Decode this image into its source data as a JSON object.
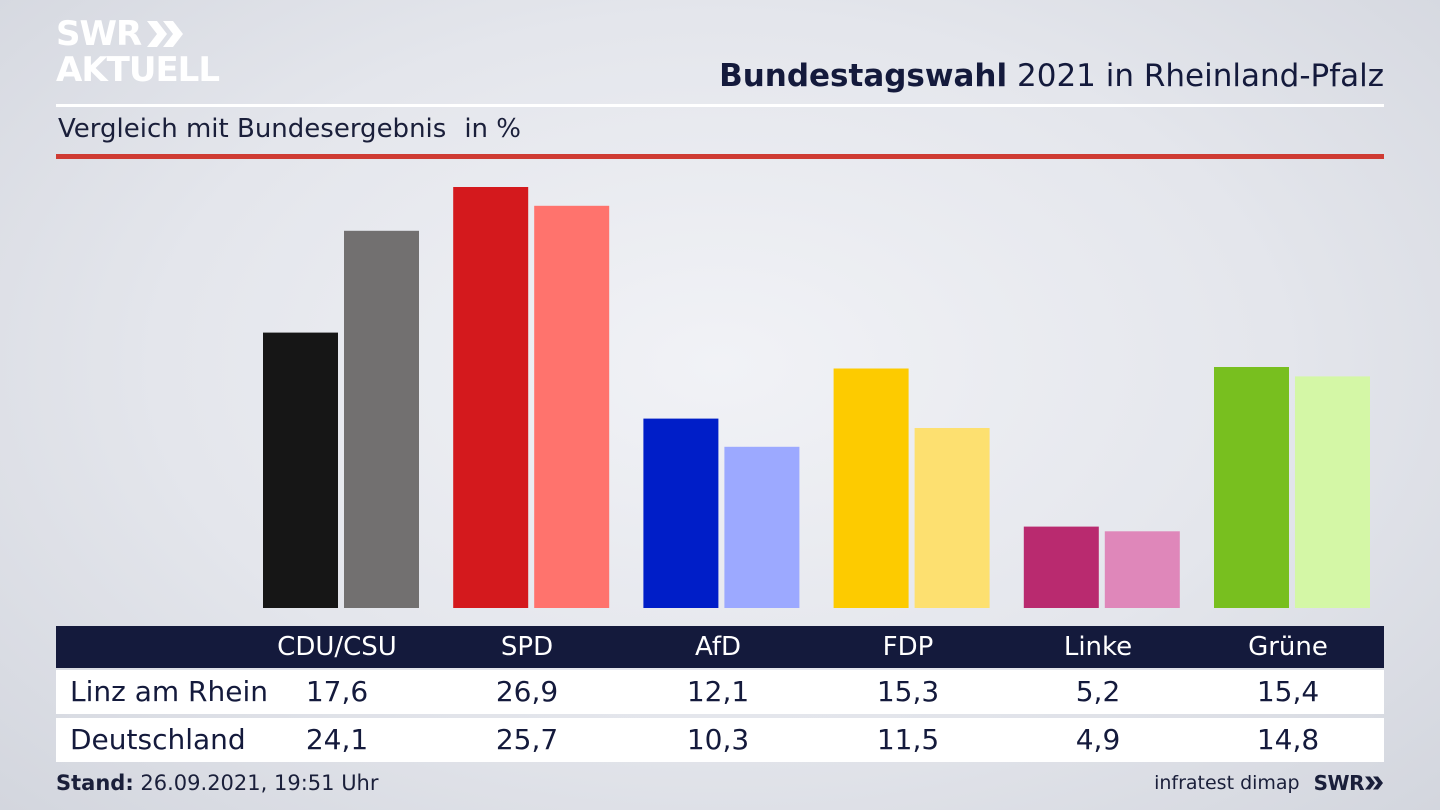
{
  "logo": {
    "line1": "SWR",
    "line2": "AKTUELL"
  },
  "header": {
    "title_bold": "Bundestagswahl",
    "title_rest": "2021 in Rheinland-Pfalz"
  },
  "subheader": {
    "text": "Vergleich mit Bundesergebnis",
    "unit": "in %"
  },
  "chart_data": {
    "type": "bar",
    "title": "Bundestagswahl 2021 in Rheinland-Pfalz",
    "subtitle": "Vergleich mit Bundesergebnis in %",
    "categories": [
      "CDU/CSU",
      "SPD",
      "AfD",
      "FDP",
      "Linke",
      "Grüne"
    ],
    "series": [
      {
        "name": "Linz am Rhein",
        "values": [
          17.6,
          26.9,
          12.1,
          15.3,
          5.2,
          15.4
        ],
        "colors": [
          "#161616",
          "#d4191d",
          "#001ec8",
          "#fdcb00",
          "#b92a6f",
          "#78bf1f"
        ]
      },
      {
        "name": "Deutschland",
        "values": [
          24.1,
          25.7,
          10.3,
          11.5,
          4.9,
          14.8
        ],
        "colors": [
          "#727070",
          "#ff736d",
          "#9ca9ff",
          "#fde070",
          "#df87ba",
          "#d4f7a6"
        ]
      }
    ],
    "ylim": [
      0,
      26.9
    ],
    "xlabel": "",
    "ylabel": "",
    "grid": false,
    "legend": "table-below"
  },
  "table": {
    "header_display": [
      "CDU/CSU",
      "SPD",
      "AfD",
      "FDP",
      "Linke",
      "Grüne"
    ],
    "rows": [
      {
        "label": "Linz am Rhein",
        "cells": [
          "17,6",
          "26,9",
          "12,1",
          "15,3",
          "5,2",
          "15,4"
        ]
      },
      {
        "label": "Deutschland",
        "cells": [
          "24,1",
          "25,7",
          "10,3",
          "11,5",
          "4,9",
          "14,8"
        ]
      }
    ]
  },
  "footer": {
    "stand_label": "Stand:",
    "stand_value": "26.09.2021, 19:51 Uhr",
    "source": "infratest dimap",
    "brand": "SWR"
  }
}
